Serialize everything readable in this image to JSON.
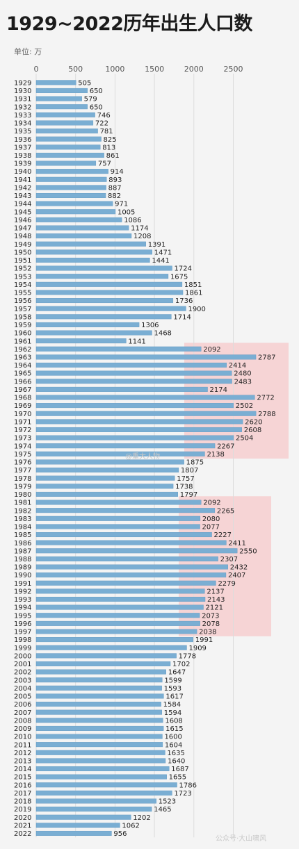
{
  "title": "1929~2022历年出生人口数",
  "unit_label": "单位: 万",
  "watermark_top": "@重大人物",
  "watermark_bottom": "公众号·大山啸风",
  "colors": {
    "bar": "#7aaed3",
    "bar_edge": "#5f97c0",
    "highlight": "#f7c9cb",
    "grid": "#dcdcdc",
    "text": "#222222",
    "axis_text": "#555555"
  },
  "chart_data": {
    "type": "bar",
    "orientation": "horizontal",
    "title": "1929~2022历年出生人口数",
    "xlabel": "",
    "ylabel": "",
    "xlim": [
      0,
      3000
    ],
    "xticks": [
      0,
      500,
      1000,
      1500,
      2000,
      2500
    ],
    "grid": true,
    "highlights": [
      [
        1962,
        1975
      ],
      [
        1981,
        1997
      ]
    ],
    "categories": [
      "1929",
      "1930",
      "1931",
      "1932",
      "1933",
      "1934",
      "1935",
      "1936",
      "1937",
      "1938",
      "1939",
      "1940",
      "1941",
      "1942",
      "1943",
      "1944",
      "1945",
      "1946",
      "1947",
      "1948",
      "1949",
      "1950",
      "1951",
      "1952",
      "1953",
      "1954",
      "1955",
      "1956",
      "1957",
      "1958",
      "1959",
      "1960",
      "1961",
      "1962",
      "1963",
      "1964",
      "1965",
      "1966",
      "1967",
      "1968",
      "1969",
      "1970",
      "1971",
      "1972",
      "1973",
      "1974",
      "1975",
      "1976",
      "1977",
      "1978",
      "1979",
      "1980",
      "1981",
      "1982",
      "1983",
      "1984",
      "1985",
      "1986",
      "1987",
      "1988",
      "1989",
      "1990",
      "1991",
      "1992",
      "1993",
      "1994",
      "1995",
      "1996",
      "1997",
      "1998",
      "1999",
      "2000",
      "2001",
      "2002",
      "2003",
      "2004",
      "2005",
      "2006",
      "2007",
      "2008",
      "2009",
      "2010",
      "2011",
      "2012",
      "2013",
      "2014",
      "2015",
      "2016",
      "2017",
      "2018",
      "2019",
      "2020",
      "2021",
      "2022"
    ],
    "values": [
      505,
      650,
      579,
      650,
      746,
      722,
      781,
      825,
      813,
      861,
      757,
      914,
      893,
      887,
      882,
      971,
      1005,
      1086,
      1174,
      1208,
      1391,
      1471,
      1441,
      1724,
      1675,
      1851,
      1861,
      1736,
      1900,
      1714,
      1306,
      1468,
      1141,
      2092,
      2787,
      2414,
      2480,
      2483,
      2174,
      2772,
      2502,
      2788,
      2620,
      2608,
      2504,
      2267,
      2138,
      1875,
      1807,
      1757,
      1738,
      1797,
      2092,
      2265,
      2080,
      2077,
      2227,
      2411,
      2550,
      2307,
      2432,
      2407,
      2279,
      2137,
      2143,
      2121,
      2073,
      2078,
      2038,
      1991,
      1909,
      1778,
      1702,
      1647,
      1599,
      1593,
      1617,
      1584,
      1594,
      1608,
      1615,
      1600,
      1604,
      1635,
      1640,
      1687,
      1655,
      1786,
      1723,
      1523,
      1465,
      1202,
      1062,
      956
    ]
  }
}
